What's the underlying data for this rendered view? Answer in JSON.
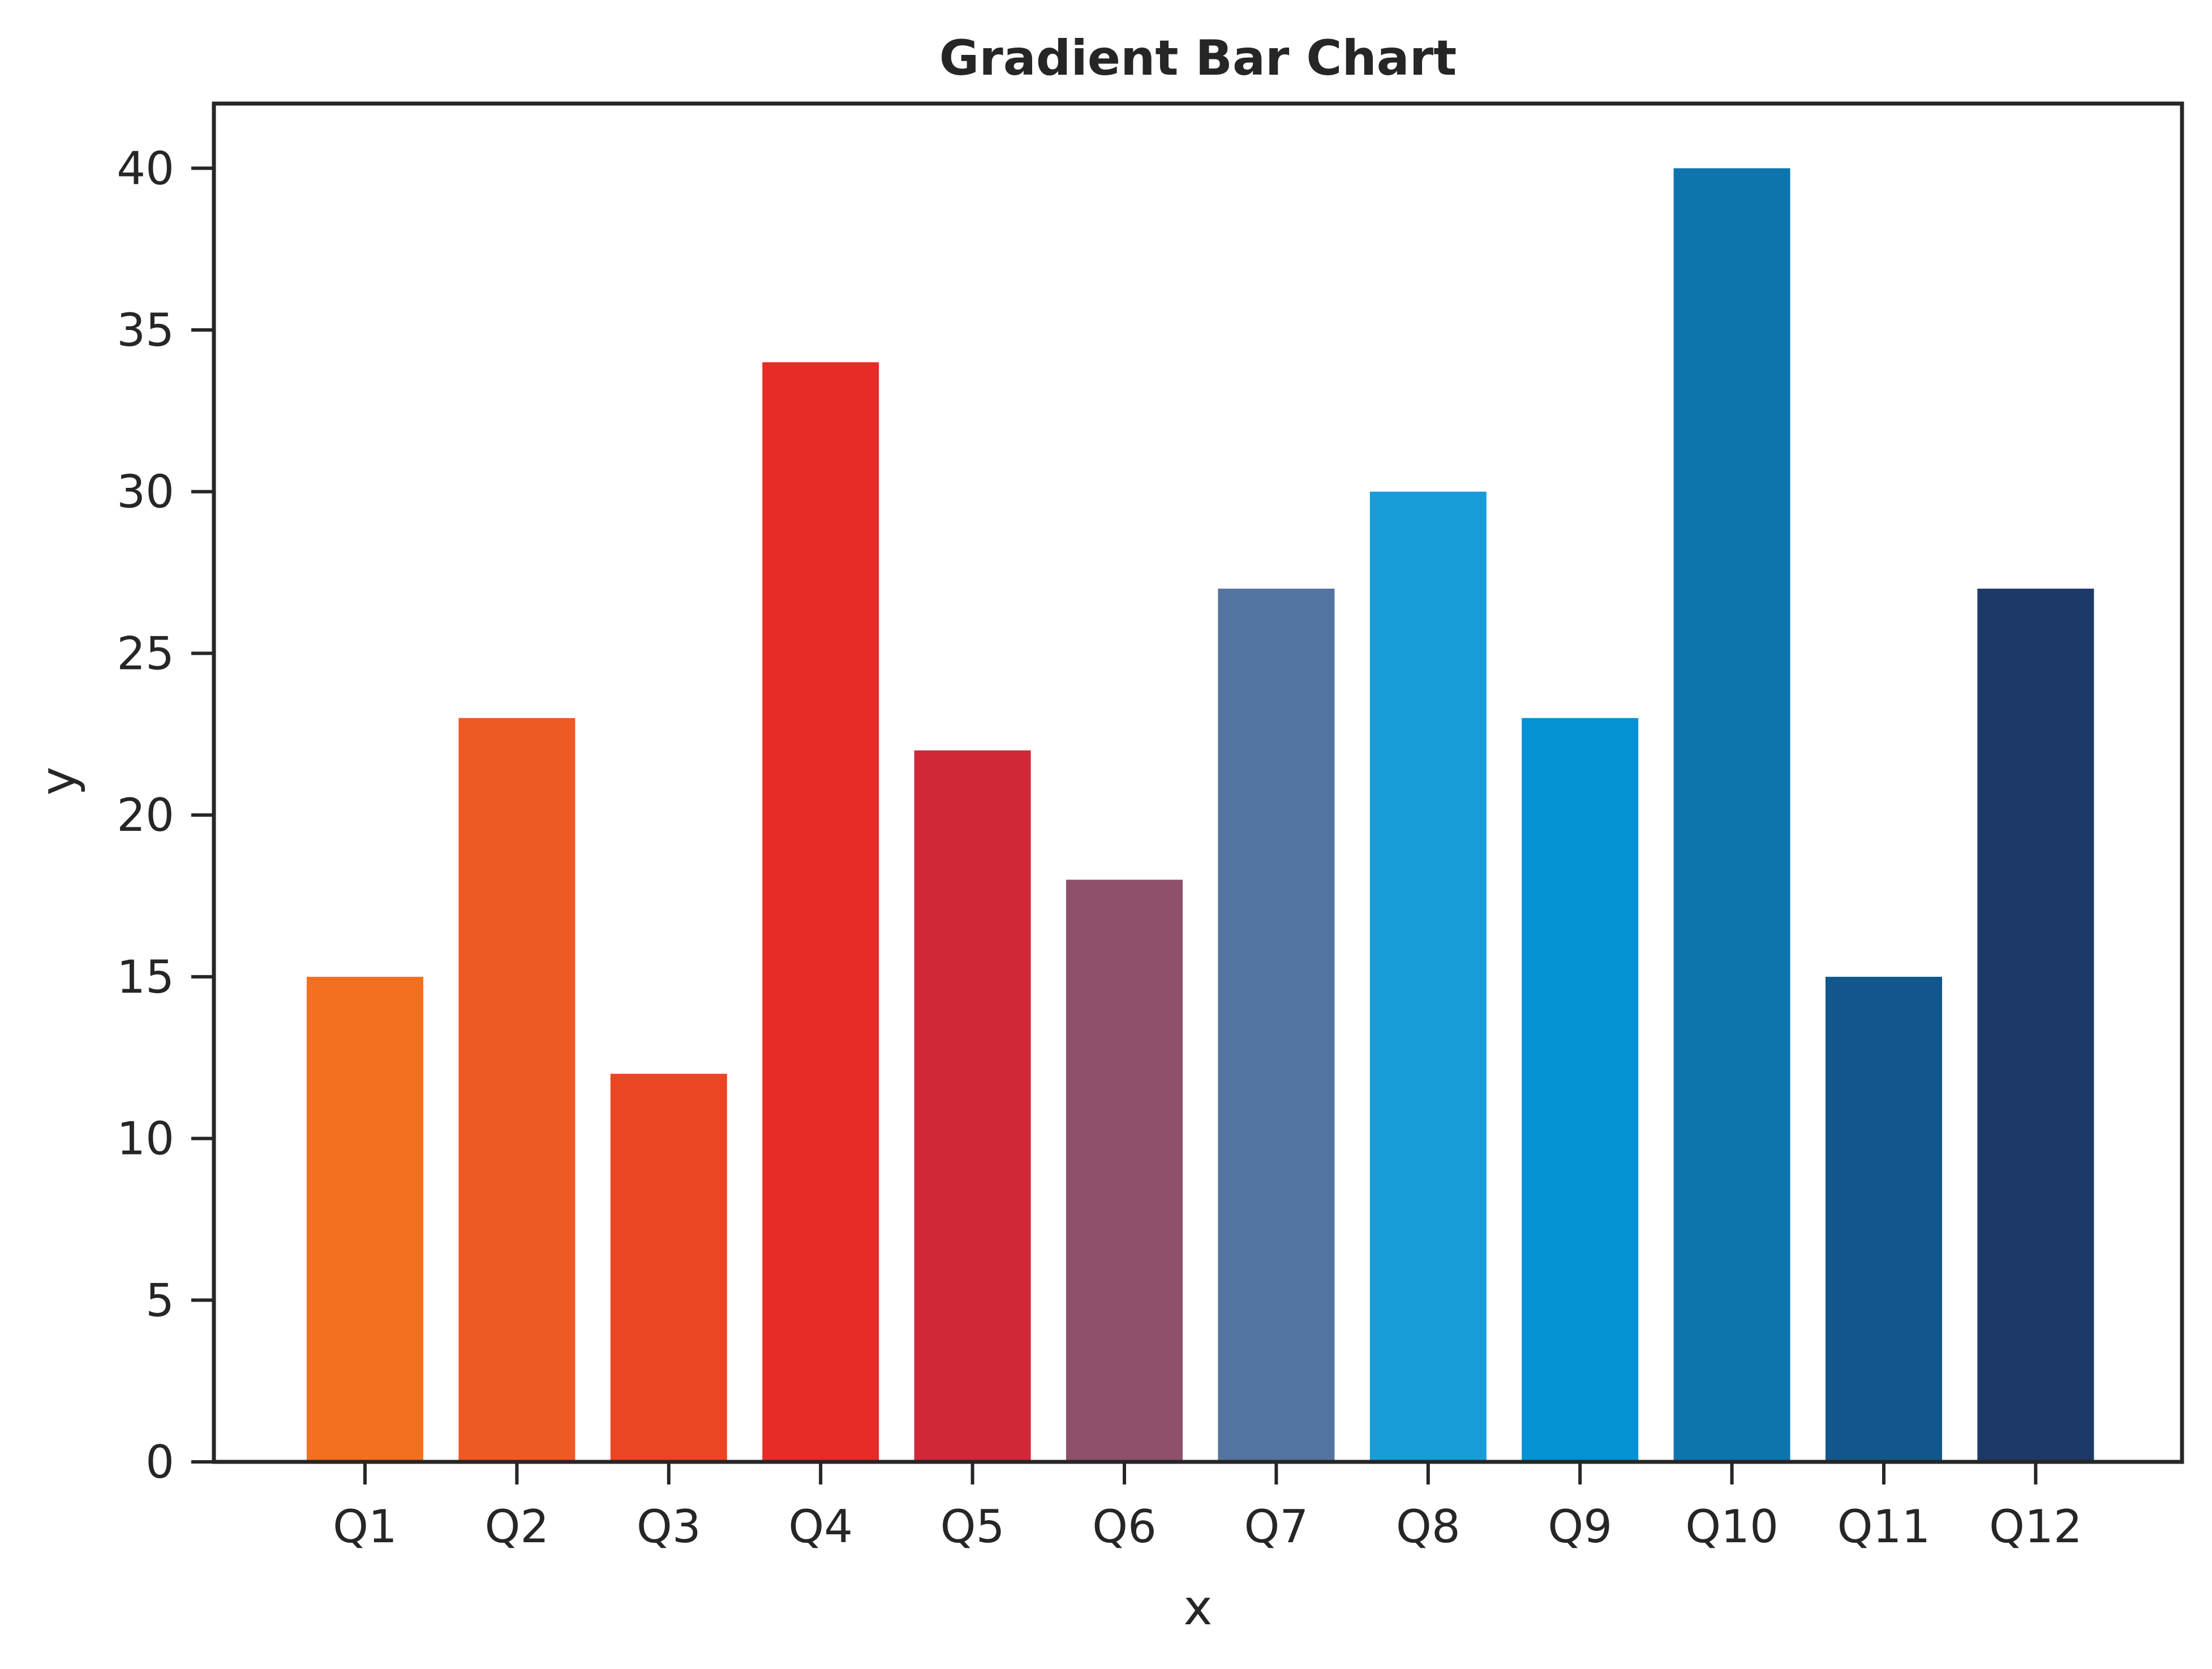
{
  "chart_data": {
    "type": "bar",
    "title": "Gradient Bar Chart",
    "xlabel": "x",
    "ylabel": "y",
    "categories": [
      "Q1",
      "Q2",
      "Q3",
      "Q4",
      "Q5",
      "Q6",
      "Q7",
      "Q8",
      "Q9",
      "Q10",
      "Q11",
      "Q12"
    ],
    "values": [
      15,
      23,
      12,
      34,
      22,
      18,
      27,
      30,
      23,
      40,
      15,
      27
    ],
    "colors": [
      "#f37021",
      "#ee5a24",
      "#eb4524",
      "#e62c26",
      "#cf2937",
      "#8f506c",
      "#5374a0",
      "#189dd9",
      "#0691d4",
      "#0d74ae",
      "#11578b",
      "#1c3968"
    ],
    "ylim": [
      0,
      42
    ],
    "yticks": [
      0,
      5,
      10,
      15,
      20,
      25,
      30,
      35,
      40
    ],
    "grid": false,
    "legend": "none"
  }
}
